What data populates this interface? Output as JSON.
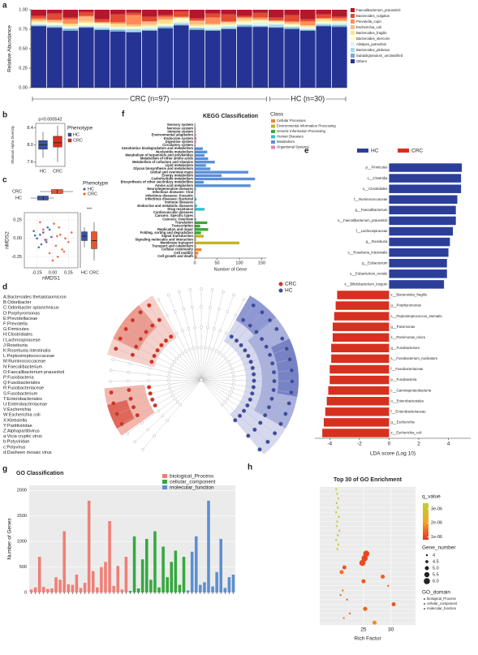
{
  "chart_data": [
    {
      "type": "stacked_bar",
      "panel": "a",
      "ylabel": "Relative Abundance",
      "ylim": [
        0,
        1
      ],
      "yticks": [
        {
          "value": 0,
          "label": "0.00"
        },
        0.25,
        {
          "value": 0.5,
          "label": "0.50"
        },
        0.75,
        {
          "value": 1,
          "label": "1.00"
        }
      ],
      "groups": [
        "CRC (n=97)",
        "HC (n=30)"
      ],
      "series": [
        {
          "name": "Faecalibacterium_prausnitzii",
          "color": "#b2182b",
          "values": [
            0.08,
            0.05,
            0.1,
            0.03,
            0.12,
            0.06,
            0.04,
            0.09,
            0.07,
            0.02,
            0.11,
            0.05,
            0.06,
            0.08,
            0.04,
            0.1,
            0.07,
            0.12,
            0.06,
            0.09
          ]
        },
        {
          "name": "Bacteroides_vulgatus",
          "color": "#e34a33",
          "values": [
            0.03,
            0.08,
            0.02,
            0.05,
            0.04,
            0.1,
            0.03,
            0.06,
            0.02,
            0.07,
            0.03,
            0.05,
            0.09,
            0.02,
            0.06,
            0.04,
            0.08,
            0.03,
            0.05,
            0.02
          ]
        },
        {
          "name": "Prevotella_copri",
          "color": "#fc8d59",
          "values": [
            0.02,
            0.0,
            0.06,
            0.01,
            0.0,
            0.02,
            0.12,
            0.0,
            0.03,
            0.01,
            0.0,
            0.08,
            0.01,
            0.0,
            0.02,
            0.0,
            0.01,
            0.05,
            0.0,
            0.03
          ]
        },
        {
          "name": "Escherichia_coli",
          "color": "#fdbb84",
          "values": [
            0.01,
            0.03,
            0.0,
            0.06,
            0.01,
            0.0,
            0.02,
            0.04,
            0.01,
            0.0,
            0.05,
            0.01,
            0.0,
            0.03,
            0.01,
            0.0,
            0.02,
            0.0,
            0.01,
            0.0
          ]
        },
        {
          "name": "Bacteroides_fragilis",
          "color": "#fee090",
          "values": [
            0.02,
            0.01,
            0.03,
            0.02,
            0.01,
            0.04,
            0.01,
            0.02,
            0.05,
            0.01,
            0.02,
            0.01,
            0.03,
            0.02,
            0.01,
            0.02,
            0.01,
            0.02,
            0.03,
            0.01
          ]
        },
        {
          "name": "Bacteroides_stercoris",
          "color": "#ffffbf",
          "values": [
            0.01,
            0.02,
            0.01,
            0.03,
            0.02,
            0.01,
            0.02,
            0.01,
            0.02,
            0.04,
            0.01,
            0.02,
            0.01,
            0.03,
            0.02,
            0.01,
            0.02,
            0.01,
            0.02,
            0.01
          ]
        },
        {
          "name": "Alistipes_putredinis",
          "color": "#e0f3f8",
          "values": [
            0.02,
            0.01,
            0.02,
            0.01,
            0.03,
            0.02,
            0.01,
            0.03,
            0.01,
            0.02,
            0.01,
            0.03,
            0.02,
            0.01,
            0.04,
            0.02,
            0.01,
            0.02,
            0.01,
            0.03
          ]
        },
        {
          "name": "Bacteroides_plebeius",
          "color": "#abd9e9",
          "values": [
            0.01,
            0.02,
            0.01,
            0.01,
            0.02,
            0.01,
            0.03,
            0.01,
            0.01,
            0.02,
            0.01,
            0.01,
            0.02,
            0.01,
            0.01,
            0.03,
            0.01,
            0.01,
            0.02,
            0.01
          ]
        },
        {
          "name": "Subdoligranulum_unclassified",
          "color": "#74add1",
          "values": [
            0.01,
            0.01,
            0.02,
            0.01,
            0.01,
            0.02,
            0.01,
            0.01,
            0.02,
            0.01,
            0.02,
            0.01,
            0.01,
            0.02,
            0.01,
            0.01,
            0.02,
            0.01,
            0.01,
            0.02
          ]
        },
        {
          "name": "Others",
          "color": "#253494",
          "values": [
            0.79,
            0.77,
            0.73,
            0.77,
            0.74,
            0.72,
            0.71,
            0.73,
            0.76,
            0.8,
            0.74,
            0.73,
            0.75,
            0.78,
            0.78,
            0.77,
            0.75,
            0.73,
            0.79,
            0.78
          ]
        }
      ]
    },
    {
      "type": "box",
      "panel": "b",
      "title": "p=0.000542",
      "ylabel": "Shannon Alpha Diversity",
      "legend_title": "Phenotype",
      "categories": [
        "HC",
        "CRC"
      ],
      "colors": [
        "#3953a4",
        "#d7301f"
      ],
      "ylim": [
        7.5,
        8.5
      ],
      "yticks": [
        7.6,
        {
          "value": 8,
          "label": "8.0"
        },
        8.4
      ],
      "boxes": [
        {
          "min": 7.7,
          "q1": 7.9,
          "median": 8.0,
          "q3": 8.1,
          "max": 8.3
        },
        {
          "min": 7.6,
          "q1": 7.95,
          "median": 8.05,
          "q3": 8.2,
          "max": 8.45
        }
      ]
    },
    {
      "type": "scatter",
      "panel": "c",
      "xlabel": "nMDS1",
      "ylabel": "nMDS2",
      "legend_title": "Phenotype",
      "annotation": "***",
      "xlim": [
        -0.45,
        0.4
      ],
      "ylim": [
        -0.4,
        0.35
      ],
      "xticks": [
        -0.25,
        {
          "value": 0,
          "label": "0.00"
        },
        0.25
      ],
      "yticks": [
        -0.25,
        {
          "value": 0,
          "label": "0.00"
        },
        0.25
      ],
      "series": [
        {
          "name": "HC",
          "color": "#3953a4",
          "x": [
            -0.2,
            -0.12,
            -0.3,
            -0.05,
            -0.18,
            -0.25,
            -0.08,
            -0.15,
            -0.22,
            -0.02,
            -0.28,
            -0.1
          ],
          "y": [
            0.05,
            -0.02,
            0.1,
            0.12,
            -0.08,
            0.0,
            0.15,
            0.08,
            -0.12,
            0.02,
            0.04,
            -0.05
          ],
          "xbox": {
            "min": -0.35,
            "q1": -0.24,
            "median": -0.15,
            "q3": -0.07,
            "max": 0.02
          },
          "ybox": {
            "min": -0.12,
            "q1": -0.03,
            "median": 0.03,
            "q3": 0.09,
            "max": 0.15
          }
        },
        {
          "name": "CRC",
          "color": "#e4572e",
          "x": [
            0.05,
            0.12,
            -0.05,
            0.2,
            0.08,
            -0.15,
            0.25,
            0.02,
            0.15,
            -0.1,
            0.3,
            0.1,
            0.0,
            0.18,
            -0.2,
            0.07
          ],
          "y": [
            -0.1,
            0.05,
            -0.2,
            0.0,
            -0.25,
            0.12,
            -0.05,
            0.2,
            -0.15,
            -0.02,
            0.08,
            0.15,
            -0.3,
            -0.18,
            0.22,
            0.03
          ],
          "xbox": {
            "min": -0.2,
            "q1": -0.02,
            "median": 0.07,
            "q3": 0.16,
            "max": 0.32
          },
          "ybox": {
            "min": -0.3,
            "q1": -0.14,
            "median": -0.03,
            "q3": 0.09,
            "max": 0.22
          }
        }
      ]
    },
    {
      "type": "cladogram",
      "panel": "d",
      "legend": [
        "CRC",
        "HC"
      ],
      "legend_colors": [
        "#d7301f",
        "#3b4ba3"
      ],
      "key": [
        "A:Bacteroides thetaiotaomicron",
        "B:Odoribacter",
        "C:Odoribacter splanchnicus",
        "D:Porphyromonas",
        "E:Prevotellaceae",
        "F:Prevotella",
        "G:Firmicutes",
        "H:Clostridiales",
        "I:Lachnospiraceae",
        "J:Roseburia",
        "K:Roseburia intestinalis",
        "L:Peptostreptococcaceae",
        "M:Ruminococcaceae",
        "N:Faecalibacterium",
        "O:Faecalibacterium prausnitzii",
        "P:Fusobacteria",
        "Q:Fusobacteriales",
        "R:Fusobacteriaceae",
        "S:Fusobacterium",
        "T:Enterobacteriales",
        "U:Enterobacteriaceae",
        "V:Escherichia",
        "W:Escherichia coli",
        "X:Klebsiella",
        "Y:Partitiviridae",
        "Z:Alphapartitivirus",
        "a:Vicia cryptic virus",
        "b:Potyviridae",
        "c:Potyvirus",
        "d:Dasheen mosaic virus"
      ]
    },
    {
      "type": "lda",
      "panel": "e",
      "xlabel": "LDA score (Log 10)",
      "xlim": [
        -5,
        5.5
      ],
      "xticks": [
        -4,
        -2,
        0,
        2,
        4
      ],
      "series": [
        {
          "name": "HC",
          "color": "#2b3f99",
          "categories": [
            "p__Firmicutes",
            "c__Clostridia",
            "o__Clostridiales",
            "f__Ruminococcaceae",
            "g__Faecalibacterium",
            "s__Faecalibacterium_prausnitzii",
            "f__Lachnospiraceae",
            "g__Roseburia",
            "s__Roseburia_intestinalis",
            "g__Eubacterium",
            "s__Eubacterium_rectale",
            "s__Bifidobacterium_longum"
          ],
          "values": [
            4.9,
            4.85,
            4.85,
            4.6,
            4.5,
            4.5,
            4.3,
            4.1,
            4.0,
            3.9,
            3.9,
            3.7
          ]
        },
        {
          "name": "CRC",
          "color": "#d7301f",
          "categories": [
            "s__Bacteroides_fragilis",
            "g__Porphyromonas",
            "s__Peptostreptococcus_stomatis",
            "g__Parvimonas",
            "s__Parvimonas_micra",
            "g__Fusobacterium",
            "s__Fusobacterium_nucleatum",
            "f__Fusobacteriaceae",
            "p__Fusobacteria",
            "c__Gammaproteobacteria",
            "o__Enterobacteriales",
            "f__Enterobacteriaceae",
            "g__Escherichia",
            "s__Escherichia_coli"
          ],
          "values": [
            -3.5,
            -3.6,
            -3.7,
            -3.8,
            -3.8,
            -3.9,
            -3.9,
            -4.0,
            -4.0,
            -4.1,
            -4.2,
            -4.3,
            -4.4,
            -4.5
          ]
        }
      ]
    },
    {
      "type": "kegg",
      "panel": "f",
      "title": "KEGG Classification",
      "xlabel": "Number of Gene",
      "legend_title": "Class",
      "xlim": [
        0,
        160
      ],
      "xticks": [
        0,
        50,
        100,
        150
      ],
      "classes": [
        {
          "name": "Cellular Processes",
          "color": "#e8853a",
          "categories": [
            "Transport and catabolism",
            "Cellular community",
            "Cell motility",
            "Cell growth and death"
          ],
          "values": [
            3,
            15,
            8,
            5
          ]
        },
        {
          "name": "Environmental Information Processing",
          "color": "#c2b326",
          "categories": [
            "Signal transduction",
            "Signaling molecules and interaction",
            "Membrane transport"
          ],
          "values": [
            20,
            3,
            100
          ]
        },
        {
          "name": "Genetic Information Processing",
          "color": "#3aa83a",
          "categories": [
            "Translation",
            "Transcription",
            "Replication and repair",
            "Folding, sorting and degradation"
          ],
          "values": [
            28,
            12,
            30,
            14
          ]
        },
        {
          "name": "Human Diseases",
          "color": "#35c0c8",
          "categories": [
            "Neurodegenerative diseases",
            "Infectious diseases: Viral",
            "Infectious diseases: Parasitic",
            "Infectious diseases: Bacterial",
            "Immune diseases",
            "Endocrine and metabolic diseases",
            "Drug resistance",
            "Cardiovascular diseases",
            "Cancers: Specific types",
            "Cancers: Overview"
          ],
          "values": [
            3,
            1,
            1,
            4,
            1,
            5,
            22,
            1,
            1,
            3
          ]
        },
        {
          "name": "Metabolism",
          "color": "#5b8fd6",
          "categories": [
            "Xenobiotics biodegradation and metabolism",
            "Nucleotide metabolism",
            "Metabolism of terpenoids and polyketides",
            "Metabolism of other amino acids",
            "Metabolism of cofactors and vitamins",
            "Lipid metabolism",
            "Glycan biosynthesis and metabolism",
            "Global and overview maps",
            "Energy metabolism",
            "Carbohydrate metabolism",
            "Biosynthesis of other secondary metabolites",
            "Amino acid metabolism"
          ],
          "values": [
            18,
            28,
            22,
            30,
            45,
            25,
            35,
            120,
            60,
            135,
            20,
            125
          ]
        },
        {
          "name": "Organismal Systems",
          "color": "#e27fc6",
          "categories": [
            "Sensory system",
            "Nervous system",
            "Immune system",
            "Environmental adaptation",
            "Endocrine system",
            "Digestive system",
            "Circulatory system"
          ],
          "values": [
            1,
            2,
            2,
            3,
            4,
            3,
            2
          ]
        }
      ]
    },
    {
      "type": "go_bar",
      "panel": "g",
      "title": "GO Classification",
      "ylabel": "Number of Genes",
      "ylim": [
        0,
        2100
      ],
      "yticks": [
        0,
        500,
        1000,
        1500,
        2000
      ],
      "series": [
        {
          "name": "biological_Process",
          "color": "#ef7f76",
          "values": [
            60,
            100,
            700,
            110,
            70,
            80,
            300,
            250,
            1200,
            160,
            150,
            350,
            90,
            190,
            1800,
            420,
            100,
            500,
            600,
            1400,
            130,
            520,
            60,
            700
          ]
        },
        {
          "name": "cellular_component",
          "color": "#35a940",
          "values": [
            30,
            1100,
            80,
            650,
            1050,
            250,
            1200,
            100,
            900,
            300,
            600,
            820,
            150,
            700
          ]
        },
        {
          "name": "molecular_function",
          "color": "#5c8fd0",
          "values": [
            40,
            800,
            1100,
            150,
            200,
            1800,
            120,
            400,
            1050,
            90,
            300,
            350
          ]
        }
      ]
    },
    {
      "type": "dot",
      "panel": "h",
      "title": "Top 30 of GO Enrichment",
      "xlabel": "Rich Factor",
      "xlim": [
        17,
        34.5
      ],
      "xticks": [
        25,
        30
      ],
      "color_title": "q_value",
      "color_lim": [
        8e-07,
        3.4e-06
      ],
      "colors": [
        "#e8331c",
        "#f5a623",
        "#b8d432"
      ],
      "color_ticks": [
        {
          "value": 3e-06,
          "label": "3e-06"
        },
        {
          "value": 2e-06,
          "label": "2e-06"
        },
        {
          "value": 1e-06,
          "label": "1e-06"
        }
      ],
      "size_title": "Gene_number",
      "size_ticks": [
        4,
        4.5,
        {
          "value": 5,
          "label": "5.0"
        },
        5.5,
        {
          "value": 6,
          "label": "6.0"
        }
      ],
      "domain_title": "GO_domain",
      "domains": [
        "biological_Process",
        "cellular_component",
        "molecular_function"
      ],
      "x": [
        20.0,
        20.2,
        20.4,
        20.1,
        20.3,
        20.0,
        20.5,
        20.2,
        20.1,
        20.6,
        20.3,
        20.0,
        20.4,
        20.2,
        25.5,
        25.2,
        24.8,
        21.5,
        21.0,
        28.5,
        25.0,
        29.5,
        21.2,
        20.8,
        22.0,
        30.5,
        25.3,
        22.5,
        21.4,
        27.0
      ],
      "gene_number": [
        4,
        4,
        4,
        4,
        4,
        4,
        4,
        4,
        4,
        4,
        4,
        4,
        4,
        4,
        6,
        6,
        6,
        5,
        5,
        5,
        5,
        4,
        4,
        4,
        4,
        5,
        5,
        4,
        4,
        5
      ],
      "q_value": [
        3.2e-06,
        3.2e-06,
        3.1e-06,
        3e-06,
        3.2e-06,
        3.1e-06,
        3e-06,
        3.2e-06,
        3.1e-06,
        3e-06,
        2.9e-06,
        3.1e-06,
        3e-06,
        2.9e-06,
        1e-06,
        1e-06,
        1.1e-06,
        1.2e-06,
        1.5e-06,
        1.3e-06,
        1.2e-06,
        1.4e-06,
        1.6e-06,
        1.5e-06,
        1.4e-06,
        1.2e-06,
        1.3e-06,
        1.5e-06,
        1.7e-06,
        1.8e-06
      ]
    }
  ]
}
